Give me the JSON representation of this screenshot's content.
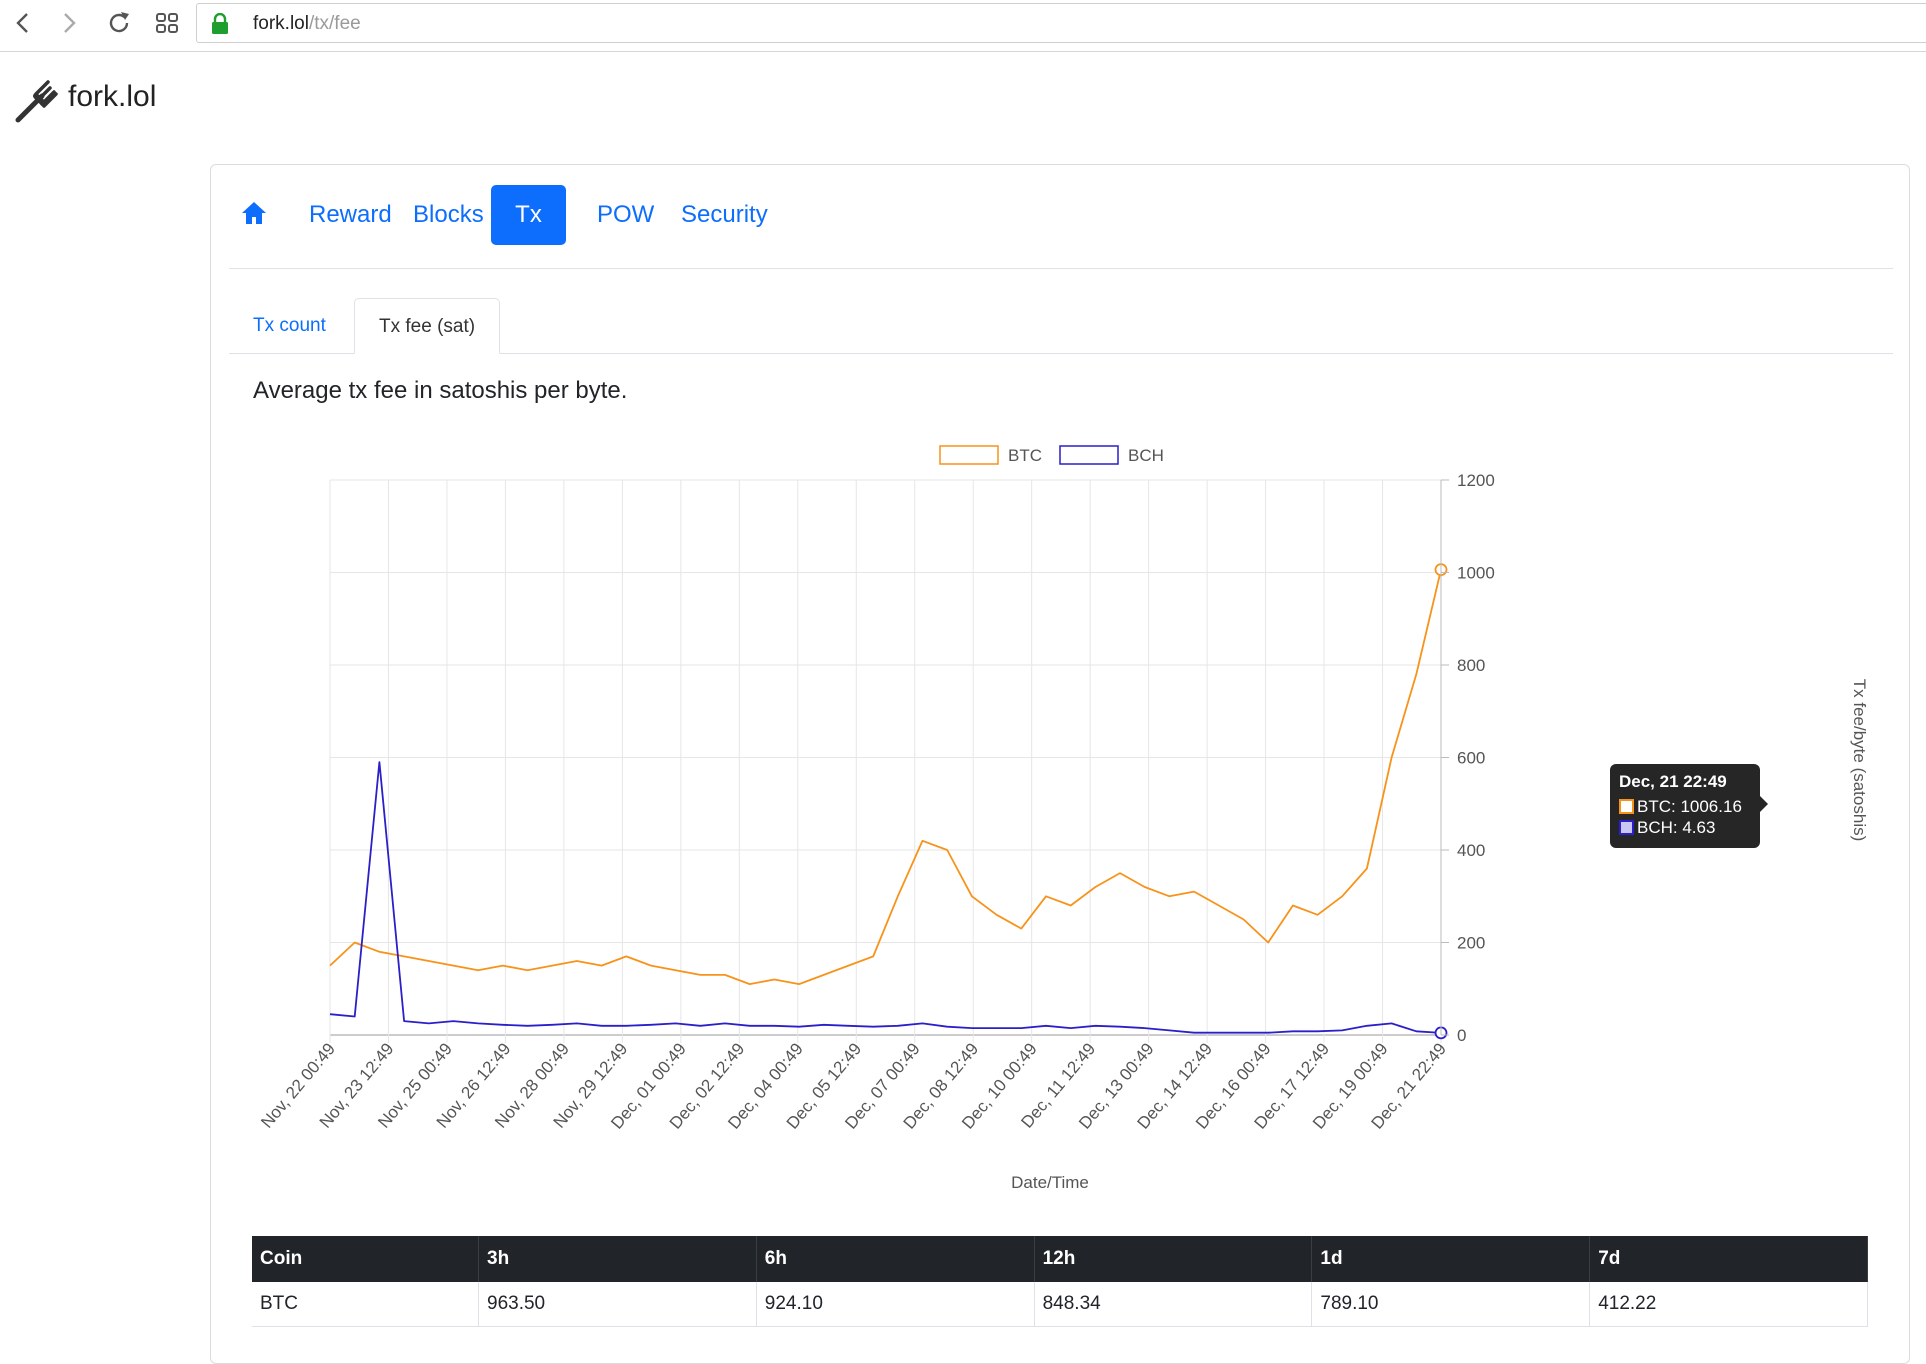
{
  "browser": {
    "url_host": "fork.lol",
    "url_path": "/tx/fee"
  },
  "site": {
    "name": "fork.lol"
  },
  "main_nav": {
    "items": [
      {
        "label": "",
        "icon": "home-icon"
      },
      {
        "label": "Reward"
      },
      {
        "label": "Blocks"
      },
      {
        "label": "Tx",
        "active": true
      },
      {
        "label": "POW"
      },
      {
        "label": "Security"
      }
    ]
  },
  "sub_tabs": {
    "items": [
      {
        "label": "Tx count"
      },
      {
        "label": "Tx fee (sat)",
        "active": true
      }
    ]
  },
  "description": "Average tx fee in satoshis per byte.",
  "tooltip": {
    "title": "Dec, 21 22:49",
    "btc": "BTC: 1006.16",
    "bch": "BCH: 4.63"
  },
  "colors": {
    "btc": "#f7931a",
    "bch": "#2a1fc9",
    "accent": "#0d6efd",
    "table_header": "#212529"
  },
  "chart_data": {
    "type": "line",
    "xlabel": "Date/Time",
    "ylabel": "Tx fee/byte (satoshis)",
    "ylim": [
      0,
      1200
    ],
    "yticks": [
      0,
      200,
      400,
      600,
      800,
      1000,
      1200
    ],
    "y_axis_side": "right",
    "grid": true,
    "legend_position": "top",
    "x_tick_labels": [
      "Nov, 22 00:49",
      "Nov, 23 12:49",
      "Nov, 25 00:49",
      "Nov, 26 12:49",
      "Nov, 28 00:49",
      "Nov, 29 12:49",
      "Dec, 01 00:49",
      "Dec, 02 12:49",
      "Dec, 04 00:49",
      "Dec, 05 12:49",
      "Dec, 07 00:49",
      "Dec, 08 12:49",
      "Dec, 10 00:49",
      "Dec, 11 12:49",
      "Dec, 13 00:49",
      "Dec, 14 12:49",
      "Dec, 16 00:49",
      "Dec, 17 12:49",
      "Dec, 19 00:49",
      "Dec, 21 22:49"
    ],
    "x": [
      "Nov 22",
      "Nov 22",
      "Nov 23",
      "Nov 23",
      "Nov 24",
      "Nov 25",
      "Nov 26",
      "Nov 26",
      "Nov 27",
      "Nov 28",
      "Nov 29",
      "Nov 29",
      "Nov 30",
      "Dec 01",
      "Dec 02",
      "Dec 02",
      "Dec 03",
      "Dec 04",
      "Dec 05",
      "Dec 05",
      "Dec 06",
      "Dec 07",
      "Dec 07",
      "Dec 08",
      "Dec 08",
      "Dec 09",
      "Dec 10",
      "Dec 10",
      "Dec 11",
      "Dec 12",
      "Dec 12",
      "Dec 13",
      "Dec 14",
      "Dec 14",
      "Dec 15",
      "Dec 16",
      "Dec 17",
      "Dec 17",
      "Dec 18",
      "Dec 19",
      "Dec 19",
      "Dec 20",
      "Dec 20",
      "Dec 21",
      "Dec 21",
      "Dec 21"
    ],
    "series": [
      {
        "name": "BTC",
        "color": "#f7931a",
        "values": [
          150,
          200,
          180,
          170,
          160,
          150,
          140,
          150,
          140,
          150,
          160,
          150,
          170,
          150,
          140,
          130,
          130,
          110,
          120,
          110,
          130,
          150,
          170,
          300,
          420,
          400,
          300,
          260,
          230,
          300,
          280,
          320,
          350,
          320,
          300,
          310,
          280,
          250,
          200,
          280,
          260,
          300,
          360,
          600,
          780,
          1006.16
        ]
      },
      {
        "name": "BCH",
        "color": "#2a1fc9",
        "values": [
          45,
          40,
          590,
          30,
          25,
          30,
          25,
          22,
          20,
          22,
          25,
          20,
          20,
          22,
          25,
          20,
          25,
          20,
          20,
          18,
          22,
          20,
          18,
          20,
          25,
          18,
          15,
          15,
          15,
          20,
          15,
          20,
          18,
          15,
          10,
          5,
          5,
          5,
          5,
          8,
          8,
          10,
          20,
          25,
          8,
          4.63
        ]
      }
    ]
  },
  "table": {
    "headers": [
      "Coin",
      "3h",
      "6h",
      "12h",
      "1d",
      "7d"
    ],
    "rows": [
      [
        "BTC",
        "963.50",
        "924.10",
        "848.34",
        "789.10",
        "412.22"
      ]
    ]
  }
}
